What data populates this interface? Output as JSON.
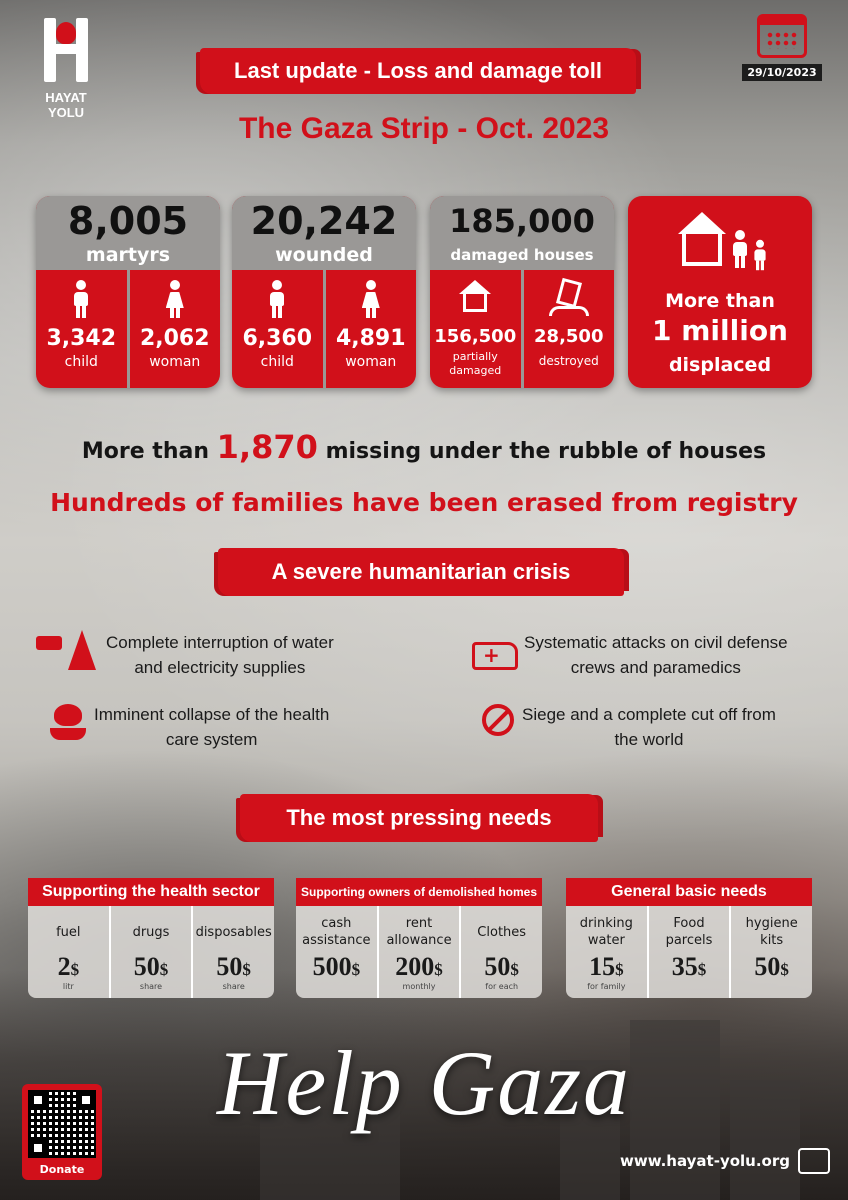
{
  "brand": {
    "name": "HAYAT YOLU"
  },
  "date": "29/10/2023",
  "header": {
    "headline": "Last update - Loss and damage toll",
    "subtitle": "The Gaza Strip - Oct. 2023"
  },
  "stats": {
    "martyrs": {
      "total": "8,005",
      "label": "martyrs",
      "child": "3,342",
      "child_label": "child",
      "woman": "2,062",
      "woman_label": "woman"
    },
    "wounded": {
      "total": "20,242",
      "label": "wounded",
      "child": "6,360",
      "child_label": "child",
      "woman": "4,891",
      "woman_label": "woman"
    },
    "houses": {
      "total": "185,000",
      "label": "damaged houses",
      "partial": "156,500",
      "partial_label": "partially damaged",
      "destroyed": "28,500",
      "destroyed_label": "destroyed"
    },
    "displaced": {
      "line1": "More than",
      "line2": "1 million",
      "line3": "displaced"
    }
  },
  "missing": {
    "prefix": "More than",
    "number": "1,870",
    "suffix": "missing under the rubble of houses"
  },
  "families": "Hundreds of families have been erased from registry",
  "crisis": {
    "title": "A severe humanitarian crisis",
    "items": [
      {
        "icon": "water-electricity-icon",
        "text_1": "Complete interruption of water",
        "text_2": "and electricity supplies"
      },
      {
        "icon": "ambulance-icon",
        "text_1": "Systematic attacks on civil defense",
        "text_2": "crews and paramedics"
      },
      {
        "icon": "health-care-icon",
        "text_1": "Imminent collapse of the health",
        "text_2": "care system"
      },
      {
        "icon": "ban-icon",
        "text_1": "Siege and a complete cut off from",
        "text_2": "the world"
      }
    ]
  },
  "needs": {
    "title": "The most pressing needs",
    "groups": [
      {
        "title": "Supporting the health sector",
        "items": [
          {
            "name": "fuel",
            "price": "2",
            "unit": "litr"
          },
          {
            "name": "drugs",
            "price": "50",
            "unit": "share"
          },
          {
            "name": "disposables",
            "price": "50",
            "unit": "share"
          }
        ]
      },
      {
        "title": "Supporting owners of demolished homes",
        "items": [
          {
            "name": "cash assistance",
            "price": "500",
            "unit": ""
          },
          {
            "name": "rent allowance",
            "price": "200",
            "unit": "monthly"
          },
          {
            "name": "Clothes",
            "price": "50",
            "unit": "for each"
          }
        ]
      },
      {
        "title": "General basic needs",
        "items": [
          {
            "name": "drinking water",
            "price": "15",
            "unit": "for family"
          },
          {
            "name": "Food parcels",
            "price": "35",
            "unit": ""
          },
          {
            "name": "hygiene kits",
            "price": "50",
            "unit": ""
          }
        ]
      }
    ],
    "currency": "$"
  },
  "footer": {
    "cta": "Help Gaza",
    "donate": "Donate",
    "website": "www.hayat-yolu.org"
  },
  "colors": {
    "accent": "#d1101a",
    "card_gray": "#9a9896"
  }
}
